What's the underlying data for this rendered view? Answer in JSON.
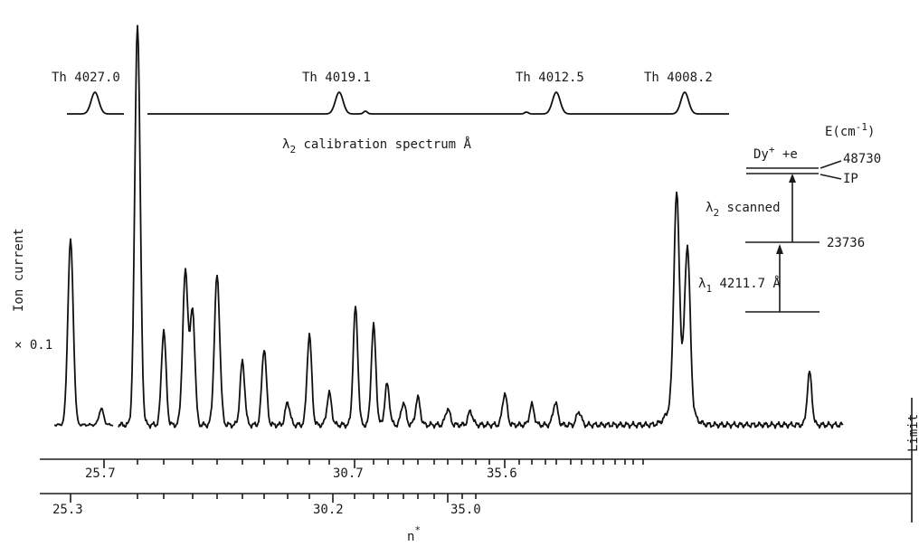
{
  "chart_data": {
    "type": "line",
    "ylabel": "Ion current",
    "scale_note": "× 0.1",
    "calibration": {
      "caption_prefix": "λ",
      "caption_sub": "2",
      "caption_rest": " calibration spectrum Å",
      "lines": [
        {
          "label": "Th 4027.0",
          "wavelength": 4027.0
        },
        {
          "label": "Th 4019.1",
          "wavelength": 4019.1
        },
        {
          "label": "Th 4012.5",
          "wavelength": 4012.5
        },
        {
          "label": "Th 4008.2",
          "wavelength": 4008.2
        }
      ]
    },
    "axes": [
      {
        "ticks": [
          "25.7",
          "30.7",
          "35.6"
        ]
      },
      {
        "ticks": [
          "25.3",
          "30.2",
          "35.0"
        ]
      }
    ],
    "xlabel": "n",
    "xlabel_sup": "*",
    "limit_label": "Limit",
    "series": [
      {
        "peaks": [
          {
            "x": 78,
            "h": 205
          },
          {
            "x": 112,
            "h": 18
          },
          {
            "x": 152,
            "h": 445
          },
          {
            "x": 181,
            "h": 105
          },
          {
            "x": 205,
            "h": 170
          },
          {
            "x": 213,
            "h": 125
          },
          {
            "x": 240,
            "h": 165
          },
          {
            "x": 268,
            "h": 70
          },
          {
            "x": 292,
            "h": 85
          },
          {
            "x": 318,
            "h": 25
          },
          {
            "x": 342,
            "h": 100
          },
          {
            "x": 364,
            "h": 35
          },
          {
            "x": 393,
            "h": 130
          },
          {
            "x": 413,
            "h": 110
          },
          {
            "x": 428,
            "h": 45
          },
          {
            "x": 446,
            "h": 25
          },
          {
            "x": 462,
            "h": 30
          },
          {
            "x": 495,
            "h": 18
          },
          {
            "x": 520,
            "h": 15
          },
          {
            "x": 558,
            "h": 35
          },
          {
            "x": 588,
            "h": 22
          },
          {
            "x": 614,
            "h": 25
          },
          {
            "x": 640,
            "h": 15
          },
          {
            "x": 748,
            "h": 220
          },
          {
            "x": 760,
            "h": 170
          },
          {
            "x": 895,
            "h": 58
          }
        ]
      }
    ]
  },
  "inset": {
    "species_main": "Dy",
    "species_sup": "+",
    "species_rest": " +e",
    "energy_unit_prefix": "E(cm",
    "energy_unit_sup": "-1",
    "energy_unit_suffix": ")",
    "level_top": "48730",
    "level_ip": "IP",
    "level_mid": "23736",
    "lambda2_prefix": "λ",
    "lambda2_sub": "2",
    "lambda2_rest": " scanned",
    "lambda1_prefix": "λ",
    "lambda1_sub": "1",
    "lambda1_rest": " 4211.7 Å"
  }
}
